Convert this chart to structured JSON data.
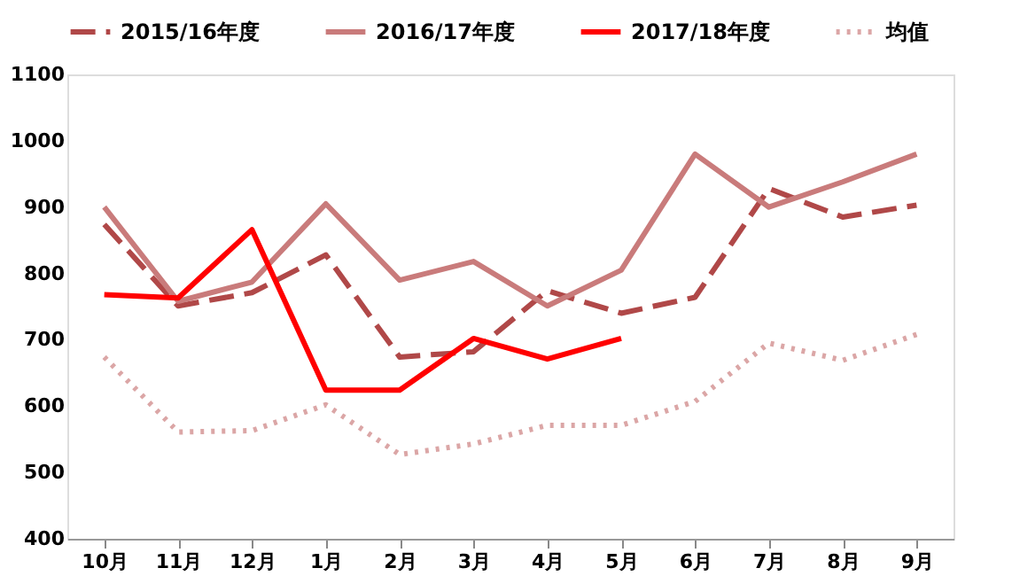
{
  "chart_data": {
    "type": "line",
    "categories": [
      "10月",
      "11月",
      "12月",
      "1月",
      "2月",
      "3月",
      "4月",
      "5月",
      "6月",
      "7月",
      "8月",
      "9月"
    ],
    "series": [
      {
        "name": "2015/16年度",
        "color": "#b04848",
        "line_style": "dashed",
        "values": [
          874,
          751,
          771,
          828,
          674,
          682,
          774,
          740,
          764,
          928,
          885,
          903
        ]
      },
      {
        "name": "2016/17年度",
        "color": "#c97b7b",
        "line_style": "solid",
        "values": [
          900,
          758,
          787,
          905,
          790,
          818,
          751,
          805,
          980,
          900,
          938,
          980
        ]
      },
      {
        "name": "2017/18年度",
        "color": "#ff0000",
        "line_style": "solid",
        "values": [
          768,
          763,
          866,
          624,
          624,
          702,
          671,
          702,
          null,
          null,
          null,
          null
        ]
      },
      {
        "name": "均值",
        "color": "#dba6a6",
        "line_style": "dotted",
        "values": [
          674,
          561,
          563,
          602,
          527,
          543,
          571,
          571,
          607,
          695,
          669,
          708
        ]
      }
    ],
    "ylim": [
      400,
      1100
    ],
    "yticks": [
      400,
      500,
      600,
      700,
      800,
      900,
      1000,
      1100
    ],
    "grid": false,
    "legend": "top",
    "marker": "none"
  }
}
